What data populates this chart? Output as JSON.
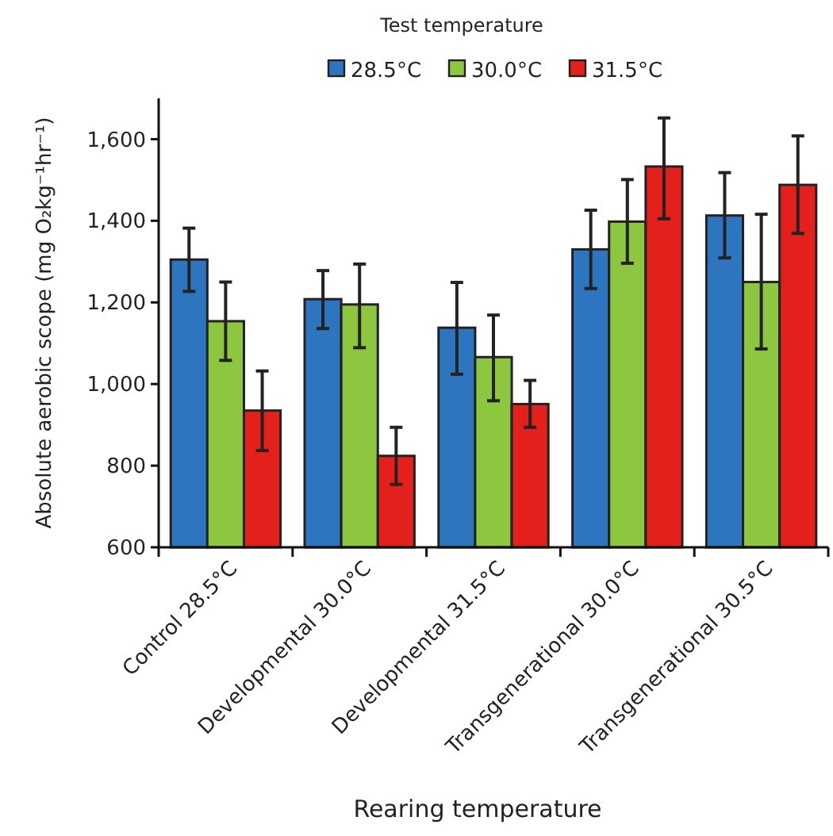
{
  "chart_data": {
    "type": "bar",
    "xlabel": "Rearing temperature",
    "ylabel": "Absolute aerobic scope (mg O₂kg⁻¹hr⁻¹)",
    "legend_title": "Test temperature",
    "legend": "top",
    "categories": [
      "Control 28.5°C",
      "Developmental 30.0°C",
      "Developmental 31.5°C",
      "Transgenerational 30.0°C",
      "Transgenerational 30.5°C"
    ],
    "ylim": [
      600,
      1700
    ],
    "yticks": [
      {
        "value": 600,
        "label": "600"
      },
      {
        "value": 800,
        "label": "800"
      },
      {
        "value": 1000,
        "label": "1,000"
      },
      {
        "value": 1200,
        "label": "1,200"
      },
      {
        "value": 1400,
        "label": "1,400"
      },
      {
        "value": 1600,
        "label": "1,600"
      }
    ],
    "series": [
      {
        "name": "28.5°C",
        "color": "#2e75c0",
        "values": [
          1305,
          1208,
          1138,
          1330,
          1413
        ],
        "errors": [
          [
            1227,
            1382
          ],
          [
            1136,
            1278
          ],
          [
            1024,
            1249
          ],
          [
            1234,
            1426
          ],
          [
            1309,
            1518
          ]
        ]
      },
      {
        "name": "30.0°C",
        "color": "#8dc63f",
        "values": [
          1154,
          1195,
          1066,
          1398,
          1250
        ],
        "errors": [
          [
            1058,
            1250
          ],
          [
            1089,
            1294
          ],
          [
            959,
            1169
          ],
          [
            1296,
            1501
          ],
          [
            1086,
            1416
          ]
        ]
      },
      {
        "name": "31.5°C",
        "color": "#e3201b",
        "values": [
          935,
          824,
          951,
          1533,
          1488
        ],
        "errors": [
          [
            837,
            1032
          ],
          [
            754,
            894
          ],
          [
            894,
            1009
          ],
          [
            1405,
            1652
          ],
          [
            1369,
            1608
          ]
        ]
      }
    ]
  }
}
